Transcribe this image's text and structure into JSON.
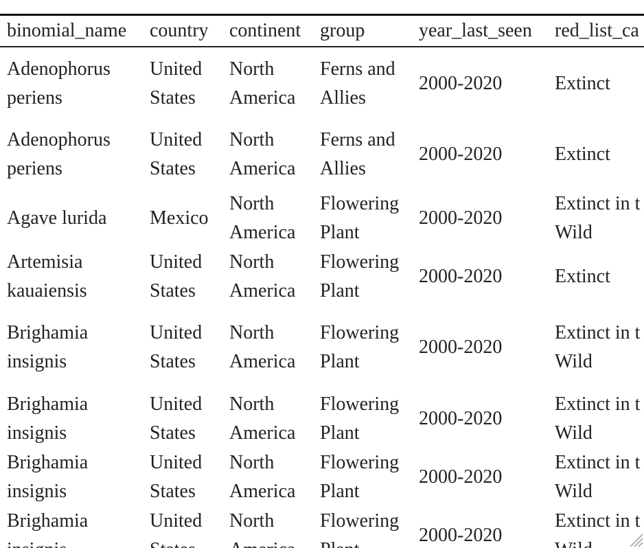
{
  "table": {
    "columns": [
      "binomial_name",
      "country",
      "continent",
      "group",
      "year_last_seen",
      "red_list_ca"
    ],
    "rows": [
      [
        "Adenophorus periens",
        "United States",
        "North America",
        "Ferns and Allies",
        "2000-2020",
        "Extinct"
      ],
      [
        "Adenophorus periens",
        "United States",
        "North America",
        "Ferns and Allies",
        "2000-2020",
        "Extinct"
      ],
      [
        "Agave lurida",
        "Mexico",
        "North America",
        "Flowering Plant",
        "2000-2020",
        "Extinct in t Wild"
      ],
      [
        "Artemisia kauaiensis",
        "United States",
        "North America",
        "Flowering Plant",
        "2000-2020",
        "Extinct"
      ],
      [
        "Brighamia insignis",
        "United States",
        "North America",
        "Flowering Plant",
        "2000-2020",
        "Extinct in t Wild"
      ],
      [
        "Brighamia insignis",
        "United States",
        "North America",
        "Flowering Plant",
        "2000-2020",
        "Extinct in t Wild"
      ],
      [
        "Brighamia insignis",
        "United States",
        "North America",
        "Flowering Plant",
        "2000-2020",
        "Extinct in t Wild"
      ],
      [
        "Brighamia insignis",
        "United States",
        "North America",
        "Flowering Plant",
        "2000-2020",
        "Extinct in t Wild"
      ]
    ]
  },
  "colors": {
    "text": "#222222",
    "rule": "#111111",
    "background": "#ffffff"
  },
  "icons": {
    "resize": "resize-grip-icon"
  }
}
